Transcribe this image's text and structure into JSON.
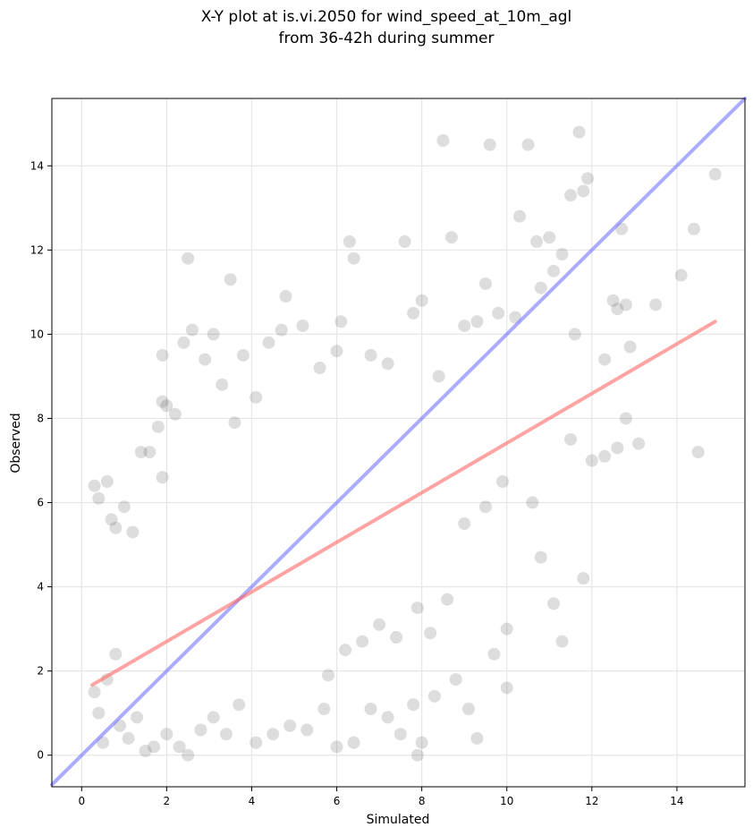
{
  "chart_data": {
    "type": "scatter",
    "title_lines": [
      "X-Y plot at is.vi.2050 for wind_speed_at_10m_agl",
      "from 36-42h during summer"
    ],
    "xlabel": "Simulated",
    "ylabel": "Observed",
    "xlim": [
      -0.7,
      15.6
    ],
    "ylim": [
      -0.75,
      15.6
    ],
    "xticks": [
      0,
      2,
      4,
      6,
      8,
      10,
      12,
      14
    ],
    "yticks": [
      0,
      2,
      4,
      6,
      8,
      10,
      12,
      14
    ],
    "grid": true,
    "point_color": "#444444",
    "points": [
      [
        0.3,
        6.4
      ],
      [
        0.4,
        6.1
      ],
      [
        0.6,
        6.5
      ],
      [
        0.8,
        5.4
      ],
      [
        0.7,
        5.6
      ],
      [
        1.0,
        5.9
      ],
      [
        1.2,
        5.3
      ],
      [
        1.4,
        7.2
      ],
      [
        1.6,
        7.2
      ],
      [
        1.9,
        6.6
      ],
      [
        1.8,
        7.8
      ],
      [
        1.9,
        8.4
      ],
      [
        2.0,
        8.3
      ],
      [
        1.9,
        9.5
      ],
      [
        2.2,
        8.1
      ],
      [
        2.4,
        9.8
      ],
      [
        2.6,
        10.1
      ],
      [
        2.5,
        11.8
      ],
      [
        2.9,
        9.4
      ],
      [
        3.1,
        10.0
      ],
      [
        3.3,
        8.8
      ],
      [
        3.6,
        7.9
      ],
      [
        3.5,
        11.3
      ],
      [
        3.8,
        9.5
      ],
      [
        4.1,
        8.5
      ],
      [
        4.4,
        9.8
      ],
      [
        4.7,
        10.1
      ],
      [
        4.8,
        10.9
      ],
      [
        5.2,
        10.2
      ],
      [
        5.6,
        9.2
      ],
      [
        6.0,
        9.6
      ],
      [
        6.1,
        10.3
      ],
      [
        6.3,
        12.2
      ],
      [
        6.4,
        11.8
      ],
      [
        6.8,
        9.5
      ],
      [
        7.2,
        9.3
      ],
      [
        7.6,
        12.2
      ],
      [
        7.8,
        10.5
      ],
      [
        8.0,
        10.8
      ],
      [
        8.4,
        9.0
      ],
      [
        8.5,
        14.6
      ],
      [
        8.7,
        12.3
      ],
      [
        9.0,
        10.2
      ],
      [
        9.3,
        10.3
      ],
      [
        9.5,
        11.2
      ],
      [
        9.6,
        14.5
      ],
      [
        9.8,
        10.5
      ],
      [
        10.2,
        10.4
      ],
      [
        10.3,
        12.8
      ],
      [
        10.5,
        14.5
      ],
      [
        10.7,
        12.2
      ],
      [
        10.8,
        11.1
      ],
      [
        11.0,
        12.3
      ],
      [
        11.1,
        11.5
      ],
      [
        11.3,
        11.9
      ],
      [
        11.5,
        13.3
      ],
      [
        11.6,
        10.0
      ],
      [
        11.7,
        14.8
      ],
      [
        11.8,
        13.4
      ],
      [
        11.9,
        13.7
      ],
      [
        12.3,
        9.4
      ],
      [
        12.5,
        10.8
      ],
      [
        12.6,
        10.6
      ],
      [
        12.7,
        12.5
      ],
      [
        12.8,
        10.7
      ],
      [
        12.9,
        9.7
      ],
      [
        13.5,
        10.7
      ],
      [
        14.1,
        11.4
      ],
      [
        14.4,
        12.5
      ],
      [
        14.9,
        13.8
      ],
      [
        0.3,
        1.5
      ],
      [
        0.4,
        1.0
      ],
      [
        0.5,
        0.3
      ],
      [
        0.6,
        1.8
      ],
      [
        0.8,
        2.4
      ],
      [
        0.9,
        0.7
      ],
      [
        1.1,
        0.4
      ],
      [
        1.3,
        0.9
      ],
      [
        1.5,
        0.1
      ],
      [
        1.7,
        0.2
      ],
      [
        2.0,
        0.5
      ],
      [
        2.3,
        0.2
      ],
      [
        2.5,
        0.0
      ],
      [
        2.8,
        0.6
      ],
      [
        3.1,
        0.9
      ],
      [
        3.4,
        0.5
      ],
      [
        3.7,
        1.2
      ],
      [
        4.1,
        0.3
      ],
      [
        4.5,
        0.5
      ],
      [
        4.9,
        0.7
      ],
      [
        5.3,
        0.6
      ],
      [
        5.7,
        1.1
      ],
      [
        6.0,
        0.2
      ],
      [
        6.4,
        0.3
      ],
      [
        6.8,
        1.1
      ],
      [
        7.2,
        0.9
      ],
      [
        7.5,
        0.5
      ],
      [
        7.8,
        1.2
      ],
      [
        8.0,
        0.3
      ],
      [
        7.9,
        0.0
      ],
      [
        8.3,
        1.4
      ],
      [
        8.8,
        1.8
      ],
      [
        9.1,
        1.1
      ],
      [
        9.3,
        0.4
      ],
      [
        9.7,
        2.4
      ],
      [
        10.0,
        1.6
      ],
      [
        10.0,
        3.0
      ],
      [
        10.8,
        4.7
      ],
      [
        11.1,
        3.6
      ],
      [
        11.3,
        2.7
      ],
      [
        11.8,
        4.2
      ],
      [
        12.0,
        7.0
      ],
      [
        12.3,
        7.1
      ],
      [
        12.6,
        7.3
      ],
      [
        13.1,
        7.4
      ],
      [
        14.5,
        7.2
      ],
      [
        12.8,
        8.0
      ],
      [
        11.5,
        7.5
      ],
      [
        10.6,
        6.0
      ],
      [
        9.9,
        6.5
      ],
      [
        9.5,
        5.9
      ],
      [
        9.0,
        5.5
      ],
      [
        8.6,
        3.7
      ],
      [
        8.2,
        2.9
      ],
      [
        7.9,
        3.5
      ],
      [
        7.4,
        2.8
      ],
      [
        7.0,
        3.1
      ],
      [
        6.6,
        2.7
      ],
      [
        6.2,
        2.5
      ],
      [
        5.8,
        1.9
      ]
    ],
    "regression_line": {
      "color": "#ff6666",
      "x": [
        0.25,
        14.9
      ],
      "y": [
        1.67,
        10.3
      ]
    },
    "identity_line": {
      "color": "#6666ff",
      "x": [
        -0.7,
        15.6
      ],
      "y": [
        -0.7,
        15.6
      ]
    }
  }
}
